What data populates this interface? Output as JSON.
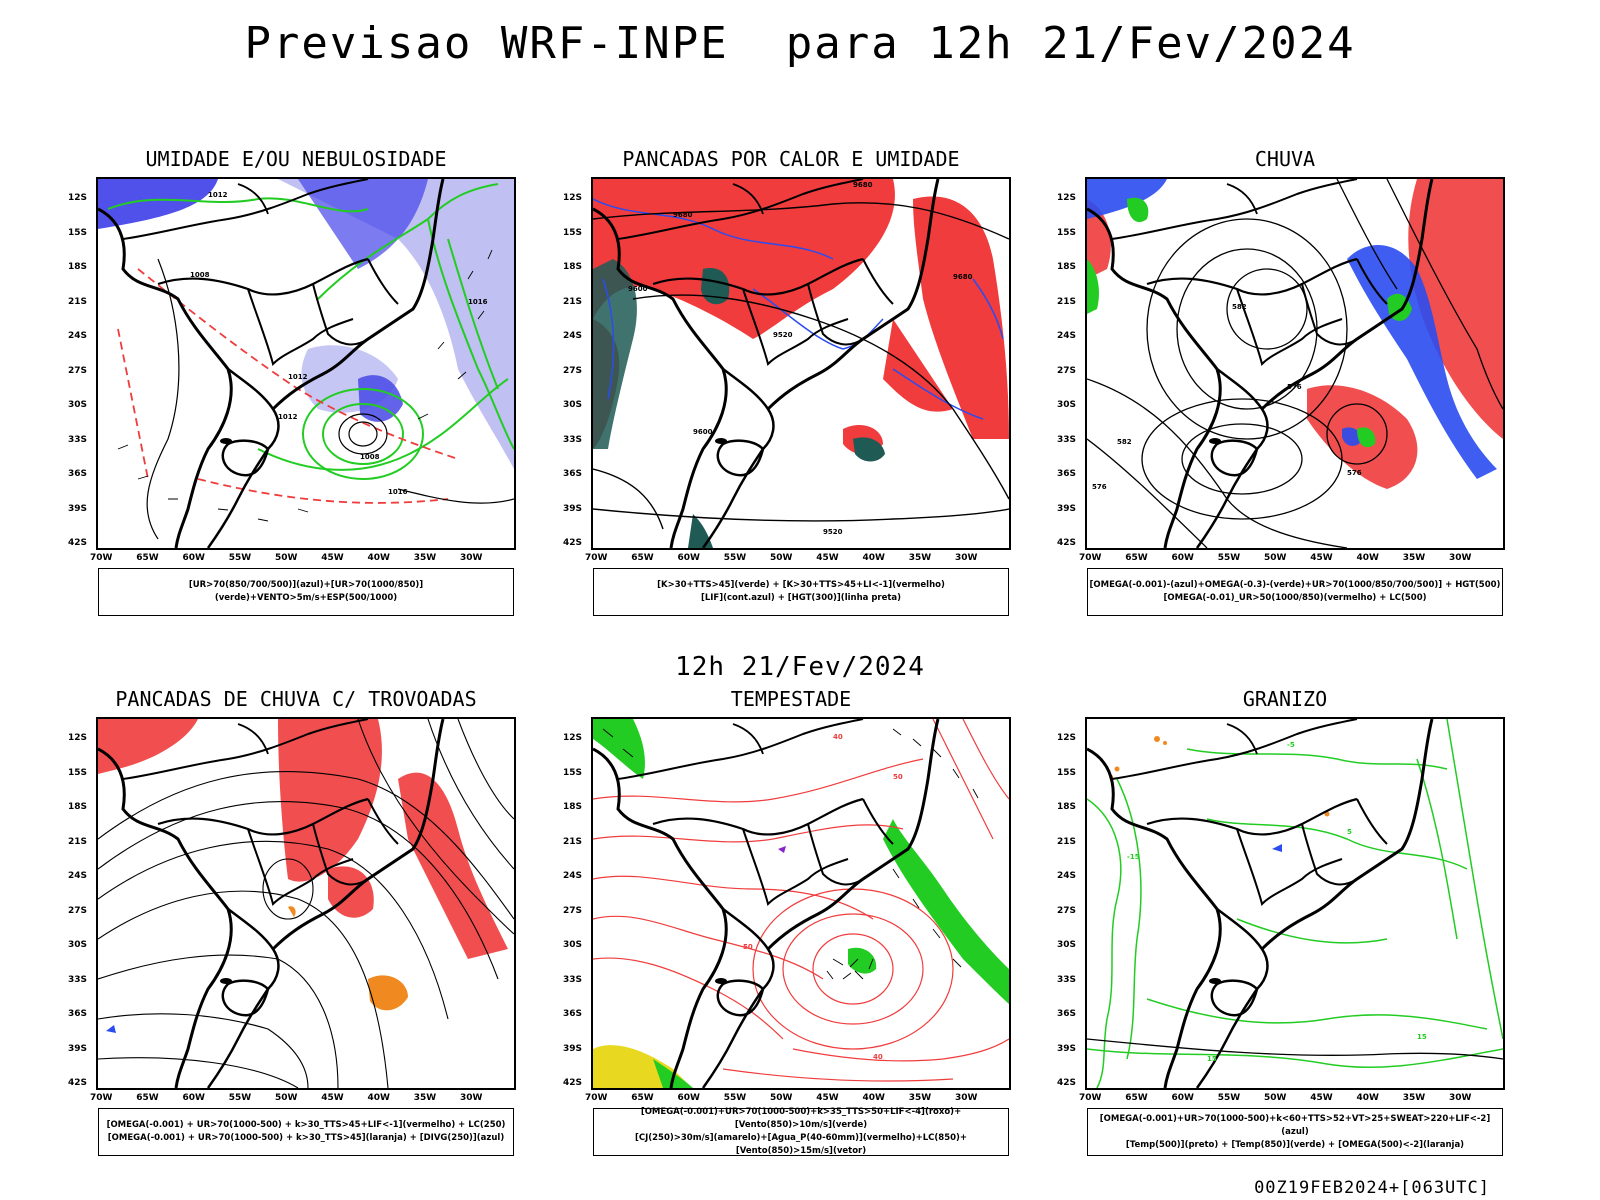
{
  "header": {
    "title": "Previsao WRF-INPE  para 12h 21/Fev/2024"
  },
  "mid_title": "12h 21/Fev/2024",
  "footer": "00Z19FEB2024+[063UTC]",
  "axes": {
    "lat_labels": [
      "12S",
      "15S",
      "18S",
      "21S",
      "24S",
      "27S",
      "30S",
      "33S",
      "36S",
      "39S",
      "42S"
    ],
    "lon_labels": [
      "70W",
      "65W",
      "60W",
      "55W",
      "50W",
      "45W",
      "40W",
      "35W",
      "30W"
    ]
  },
  "colors": {
    "red": "#f03c3c",
    "green": "#22cc22",
    "blue": "#2a4cf0",
    "lavender": "#a8a8f0",
    "teal": "#1f5a55",
    "orange": "#f08a20",
    "yellow": "#e8d820",
    "purple": "#8822cc"
  },
  "panels": [
    {
      "id": "umidade",
      "title": "UMIDADE E/OU NEBULOSIDADE",
      "legend": [
        "[UR>70(850/700/500)](azul)+[UR>70(1000/850)](verde)+VENTO>5m/s+ESP(500/1000)"
      ],
      "contour_labels": [
        "1012",
        "1008",
        "1016",
        "1008",
        "1012",
        "1016",
        "1012"
      ]
    },
    {
      "id": "pancadas-calor",
      "title": "PANCADAS POR CALOR E UMIDADE",
      "legend": [
        "[K>30+TTS>45](verde) + [K>30+TTS>45+LI<-1](vermelho)",
        "[LIF](cont.azul) + [HGT(300)](linha preta)"
      ],
      "contour_labels": [
        "9680",
        "9680",
        "9600",
        "9520",
        "9680",
        "9520",
        "9600"
      ]
    },
    {
      "id": "chuva",
      "title": "CHUVA",
      "legend": [
        "[OMEGA(-0.001)-(azul)+OMEGA(-0.3)-(verde)+UR>70(1000/850/700/500)] + HGT(500)",
        "[OMEGA(-0.01)_UR>50(1000/850)(vermelho) + LC(500)"
      ],
      "contour_labels": [
        "582",
        "576",
        "582",
        "576",
        "576"
      ]
    },
    {
      "id": "pancadas-trovoadas",
      "title": "PANCADAS DE CHUVA C/ TROVOADAS",
      "legend": [
        "[OMEGA(-0.001) + UR>70(1000-500) + k>30_TTS>45+LIF<-1](vermelho) + LC(250)",
        "[OMEGA(-0.001) + UR>70(1000-500) + k>30_TTS>45](laranja) + [DIVG(250)](azul)"
      ],
      "contour_labels": []
    },
    {
      "id": "tempestade",
      "title": "TEMPESTADE",
      "legend": [
        "[OMEGA(-0.001)+UR>70(1000-500)+k>35_TTS>50+LIF<-4](roxo)+[Vento(850)>10m/s](verde)",
        "[CJ(250)>30m/s](amarelo)+[Agua_P(40-60mm)](vermelho)+LC(850)+[Vento(850)>15m/s](vetor)"
      ],
      "contour_labels": [
        "40",
        "50",
        "40",
        "50"
      ]
    },
    {
      "id": "granizo",
      "title": "GRANIZO",
      "legend": [
        "[OMEGA(-0.001)+UR>70(1000-500)+k<60+TTS>52+VT>25+SWEAT>220+LIF<-2](azul)",
        "[Temp(500)](preto) + [Temp(850)](verde) + [OMEGA(500)<-2](laranja)"
      ],
      "contour_labels": [
        "-15",
        "-5",
        "5",
        "15",
        "15"
      ]
    }
  ]
}
